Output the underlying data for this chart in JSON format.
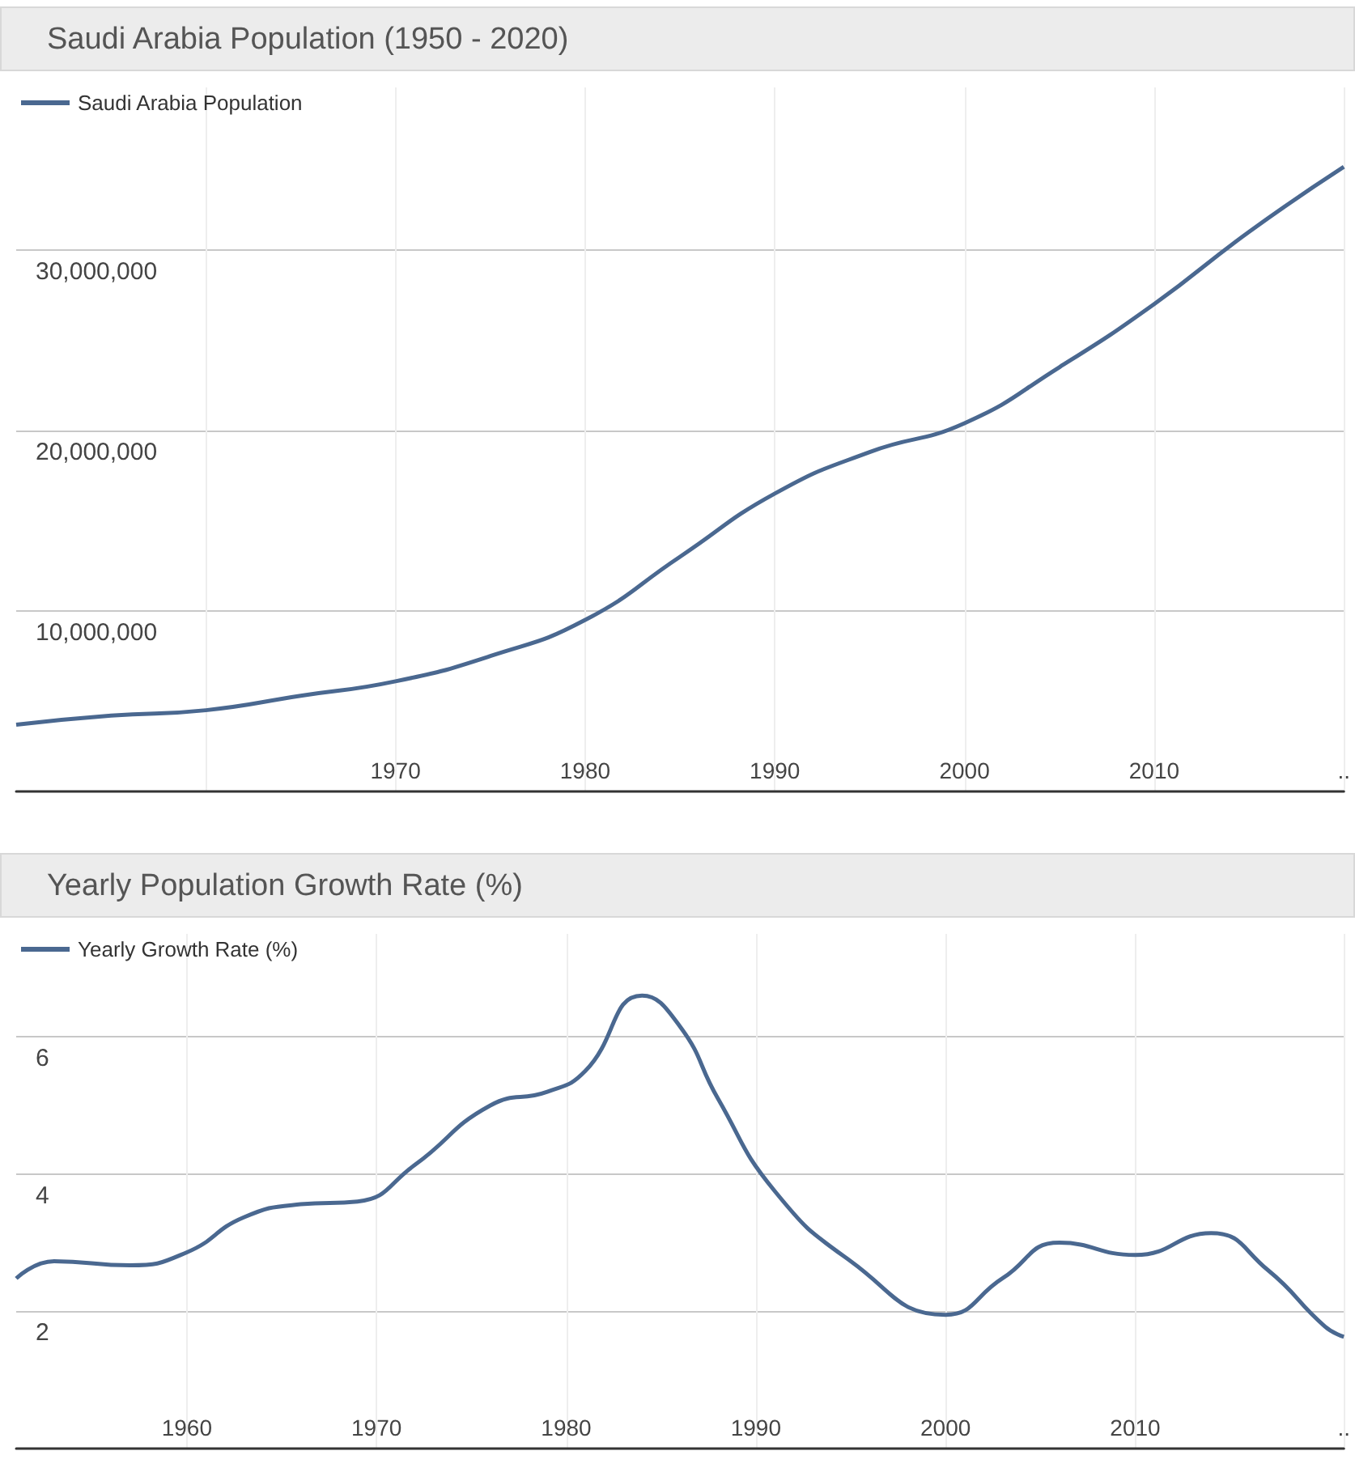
{
  "chart_data": [
    {
      "type": "line",
      "title": "Saudi Arabia Population (1950 - 2020)",
      "x": [
        1950,
        1955,
        1960,
        1965,
        1970,
        1975,
        1980,
        1985,
        1990,
        1995,
        2000,
        2005,
        2010,
        2015,
        2020
      ],
      "series": [
        {
          "name": "Saudi Arabia Population",
          "color": "#4a6890",
          "values": [
            3700000,
            4200000,
            4500000,
            5300000,
            6100000,
            7500000,
            9500000,
            13000000,
            16500000,
            18800000,
            20400000,
            23500000,
            27000000,
            31000000,
            34600000
          ]
        }
      ],
      "xlim": [
        1950,
        2020
      ],
      "xticks": [
        {
          "value": 1960,
          "label": null
        },
        1970,
        1980,
        1990,
        2000,
        2010,
        {
          "value": 2020,
          "label": ".."
        }
      ],
      "ylim": [
        0,
        39000000
      ],
      "yticks": [
        {
          "value": 10000000,
          "label": "10,000,000"
        },
        {
          "value": 20000000,
          "label": "20,000,000"
        },
        {
          "value": 30000000,
          "label": "30,000,000"
        }
      ],
      "grid": true,
      "legend": "top left",
      "marker": "none",
      "line_style": "solid"
    },
    {
      "type": "line",
      "title": "Yearly Population Growth Rate (%)",
      "x": [
        1951,
        1953,
        1957,
        1960,
        1963,
        1966,
        1969,
        1972,
        1976,
        1979,
        1981,
        1984,
        1986,
        1988,
        1991,
        1995,
        2000,
        2003,
        2006,
        2010,
        2014,
        2017,
        2020,
        2021
      ],
      "series": [
        {
          "name": "Yearly Growth Rate (%)",
          "color": "#4a6890",
          "values": [
            2.48,
            2.73,
            2.67,
            2.86,
            3.37,
            3.56,
            3.6,
            4.13,
            5.0,
            5.2,
            5.5,
            6.6,
            6.15,
            5.1,
            3.75,
            2.73,
            1.95,
            2.48,
            3.0,
            2.82,
            3.14,
            2.6,
            1.78,
            1.63
          ]
        }
      ],
      "xlim": [
        1951,
        2021
      ],
      "xticks": [
        1960,
        1970,
        1980,
        1990,
        2000,
        2010,
        {
          "value": 2021,
          "label": ".."
        }
      ],
      "ylim": [
        0,
        7.5
      ],
      "yticks": [
        2,
        4,
        6
      ],
      "grid": true,
      "legend": "top left",
      "marker": "none",
      "line_style": "solid"
    }
  ]
}
